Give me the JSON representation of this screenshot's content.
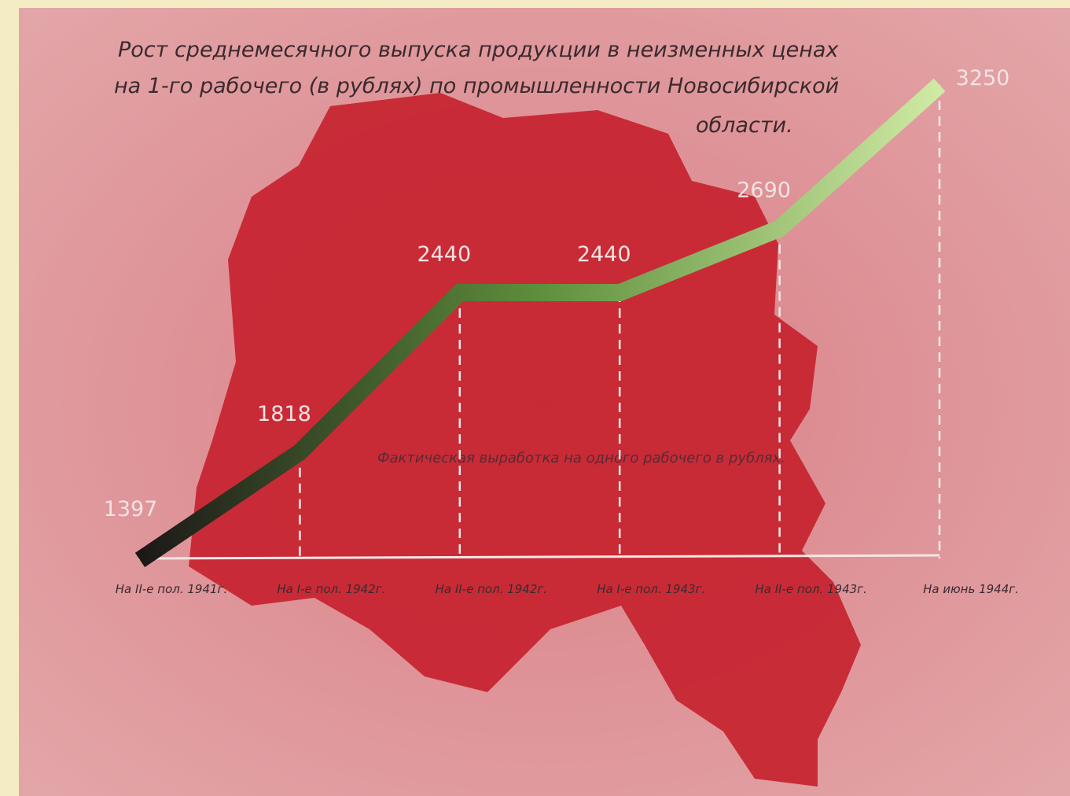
{
  "chart_data": {
    "type": "line",
    "title": [
      "Рост среднемесячного выпуска продукции в неизменных ценах",
      "на 1-го рабочего (в рублях) по промышленности Новосибирской",
      "области."
    ],
    "annotation": "Фактическая выработка на одного рабочего в рублях.",
    "categories": [
      "На II-е пол. 1941г.",
      "На I-е пол. 1942г.",
      "На II-е пол. 1942г.",
      "На I-е пол. 1943г.",
      "На II-е пол. 1943г.",
      "На июнь 1944г."
    ],
    "values": [
      1397,
      1818,
      2440,
      2440,
      2690,
      3250
    ],
    "colors": [
      "#1c1818",
      "#5e8f3c",
      "#cfeaa4"
    ]
  }
}
